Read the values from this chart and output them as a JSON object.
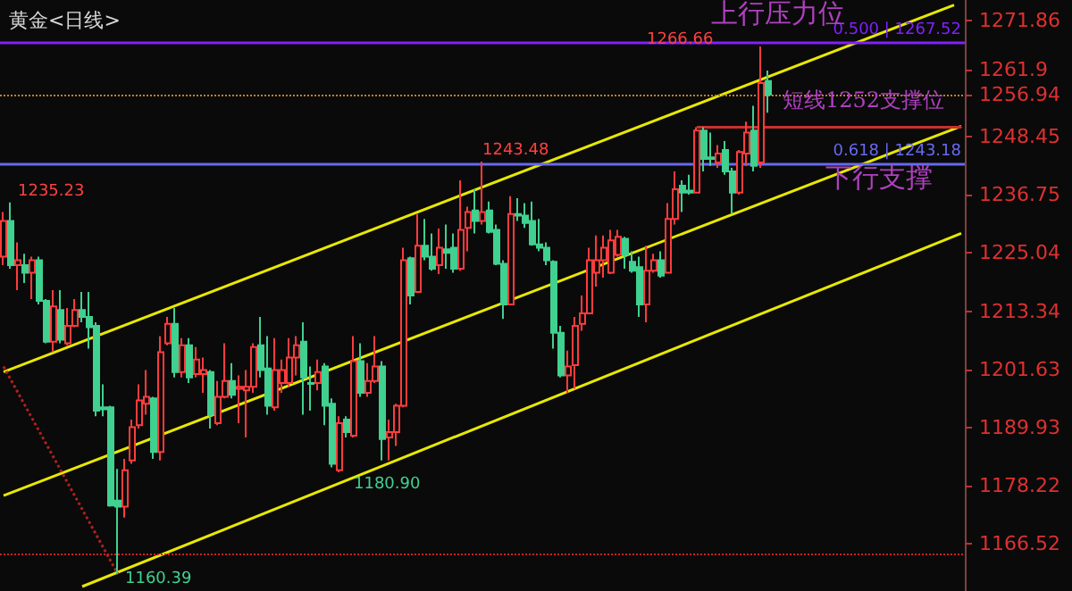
{
  "chart_data": {
    "type": "candlestick",
    "title": "黄金<日线>",
    "categories": [
      null,
      null,
      null,
      null,
      null,
      null,
      null,
      null,
      null,
      null,
      null,
      null,
      null,
      null,
      null,
      null,
      null,
      null,
      null,
      null,
      null,
      null,
      null,
      null,
      null,
      null,
      null,
      null,
      null,
      null,
      null,
      null,
      null,
      null,
      null,
      null,
      null,
      null,
      null,
      null,
      null,
      null,
      null,
      null,
      null,
      null,
      null,
      null,
      null,
      null,
      null,
      null,
      null,
      null,
      null,
      null,
      null,
      null,
      null,
      null,
      null,
      null,
      null,
      null,
      null,
      null,
      null,
      null,
      null,
      null,
      null,
      null,
      null,
      null,
      null,
      null,
      null,
      null,
      null,
      null,
      null,
      null,
      null,
      null,
      null,
      null,
      null,
      null,
      null,
      null,
      null,
      null,
      null,
      null,
      null,
      null,
      null,
      null,
      null,
      null,
      null,
      null,
      null,
      null,
      null,
      null,
      null,
      null,
      null,
      null,
      null,
      null,
      null,
      null,
      null,
      null,
      null,
      null,
      null,
      null,
      null,
      null,
      null,
      null,
      null,
      null,
      null,
      null,
      null,
      null,
      null,
      null,
      null,
      null,
      null
    ],
    "ohlc": [
      [
        1224.3,
        1233.3,
        1222.6,
        1231.5
      ],
      [
        1231.5,
        1235.23,
        1221.9,
        1222.6
      ],
      [
        1222.6,
        1227.2,
        1217.6,
        1223.6
      ],
      [
        1222.6,
        1224.9,
        1219.0,
        1221.1
      ],
      [
        1221.1,
        1224.3,
        1215.8,
        1223.6
      ],
      [
        1223.6,
        1224.3,
        1214.7,
        1215.4
      ],
      [
        1215.4,
        1215.8,
        1206.9,
        1207.2
      ],
      [
        1207.2,
        1217.6,
        1205.1,
        1214.3
      ],
      [
        1213.6,
        1217.6,
        1206.9,
        1207.6
      ],
      [
        1206.9,
        1214.0,
        1206.5,
        1210.4
      ],
      [
        1210.4,
        1215.8,
        1210.1,
        1213.6
      ],
      [
        1213.6,
        1217.2,
        1211.1,
        1212.2
      ],
      [
        1212.2,
        1217.2,
        1205.8,
        1210.1
      ],
      [
        1210.4,
        1211.1,
        1192.2,
        1193.3
      ],
      [
        1194.0,
        1198.6,
        1192.2,
        1193.6
      ],
      [
        1194.0,
        1194.3,
        1174.0,
        1174.2
      ],
      [
        1175.2,
        1181.6,
        1160.39,
        1174.0
      ],
      [
        1174.0,
        1183.6,
        1171.8,
        1181.3
      ],
      [
        1183.3,
        1191.5,
        1182.6,
        1190.0
      ],
      [
        1190.4,
        1198.6,
        1189.7,
        1195.4
      ],
      [
        1194.7,
        1201.5,
        1192.5,
        1196.1
      ],
      [
        1195.8,
        1196.1,
        1183.6,
        1185.0
      ],
      [
        1185.0,
        1208.3,
        1183.3,
        1205.1
      ],
      [
        1206.9,
        1212.2,
        1206.5,
        1210.8
      ],
      [
        1210.8,
        1214.0,
        1200.0,
        1201.1
      ],
      [
        1201.1,
        1207.9,
        1200.0,
        1206.5
      ],
      [
        1206.5,
        1207.9,
        1198.9,
        1200.0
      ],
      [
        1200.7,
        1206.1,
        1200.0,
        1203.6
      ],
      [
        1200.7,
        1204.0,
        1196.9,
        1201.5
      ],
      [
        1201.1,
        1201.5,
        1189.7,
        1192.5
      ],
      [
        1190.8,
        1199.3,
        1190.4,
        1196.1
      ],
      [
        1196.1,
        1206.9,
        1195.8,
        1199.3
      ],
      [
        1199.3,
        1202.9,
        1195.8,
        1196.5
      ],
      [
        1197.7,
        1200.4,
        1190.8,
        1198.1
      ],
      [
        1197.4,
        1201.5,
        1187.9,
        1198.1
      ],
      [
        1198.1,
        1206.9,
        1196.9,
        1206.1
      ],
      [
        1206.5,
        1212.2,
        1200.0,
        1201.5
      ],
      [
        1201.8,
        1208.3,
        1192.5,
        1194.3
      ],
      [
        1194.0,
        1207.9,
        1193.3,
        1201.5
      ],
      [
        1198.9,
        1203.6,
        1196.9,
        1201.5
      ],
      [
        1198.9,
        1207.9,
        1198.1,
        1204.0
      ],
      [
        1204.0,
        1208.3,
        1200.4,
        1206.5
      ],
      [
        1207.2,
        1211.1,
        1192.5,
        1200.0
      ],
      [
        1198.9,
        1202.2,
        1193.3,
        1198.7
      ],
      [
        1198.9,
        1203.6,
        1197.4,
        1201.1
      ],
      [
        1202.2,
        1202.9,
        1190.4,
        1194.3
      ],
      [
        1194.7,
        1195.8,
        1181.9,
        1182.6
      ],
      [
        1181.3,
        1192.2,
        1180.9,
        1190.8
      ],
      [
        1191.5,
        1192.2,
        1187.9,
        1189.0
      ],
      [
        1188.3,
        1208.3,
        1187.9,
        1203.3
      ],
      [
        1203.3,
        1206.9,
        1196.1,
        1196.9
      ],
      [
        1196.9,
        1202.9,
        1196.1,
        1199.3
      ],
      [
        1199.3,
        1208.3,
        1198.9,
        1202.2
      ],
      [
        1202.2,
        1203.3,
        1183.3,
        1187.6
      ],
      [
        1187.9,
        1191.5,
        1183.3,
        1189.0
      ],
      [
        1189.0,
        1194.7,
        1186.2,
        1194.3
      ],
      [
        1194.3,
        1226.1,
        1194.0,
        1223.6
      ],
      [
        1224.0,
        1224.3,
        1214.7,
        1216.5
      ],
      [
        1217.2,
        1232.9,
        1217.2,
        1226.5
      ],
      [
        1226.5,
        1231.9,
        1223.6,
        1224.3
      ],
      [
        1224.3,
        1229.0,
        1221.5,
        1221.9
      ],
      [
        1222.6,
        1230.0,
        1220.8,
        1226.1
      ],
      [
        1225.8,
        1230.8,
        1221.9,
        1225.1
      ],
      [
        1226.1,
        1229.0,
        1221.1,
        1221.9
      ],
      [
        1221.9,
        1239.7,
        1221.5,
        1229.7
      ],
      [
        1230.1,
        1234.4,
        1225.4,
        1233.3
      ],
      [
        1233.6,
        1237.9,
        1229.0,
        1231.5
      ],
      [
        1231.5,
        1243.48,
        1230.8,
        1233.3
      ],
      [
        1233.6,
        1235.4,
        1229.0,
        1229.3
      ],
      [
        1229.7,
        1230.8,
        1222.6,
        1222.9
      ],
      [
        1222.9,
        1223.6,
        1211.8,
        1214.7
      ],
      [
        1214.7,
        1236.5,
        1214.7,
        1232.9
      ],
      [
        1232.9,
        1236.1,
        1231.5,
        1232.6
      ],
      [
        1232.6,
        1235.1,
        1230.1,
        1231.1
      ],
      [
        1231.5,
        1235.4,
        1226.5,
        1226.8
      ],
      [
        1226.8,
        1231.9,
        1225.4,
        1226.1
      ],
      [
        1226.1,
        1227.2,
        1222.6,
        1223.6
      ],
      [
        1223.3,
        1223.6,
        1205.8,
        1209.0
      ],
      [
        1209.0,
        1210.4,
        1200.0,
        1200.4
      ],
      [
        1200.4,
        1205.4,
        1196.9,
        1202.2
      ],
      [
        1202.5,
        1212.2,
        1197.7,
        1210.4
      ],
      [
        1210.8,
        1216.5,
        1209.4,
        1212.9
      ],
      [
        1212.9,
        1226.1,
        1212.9,
        1223.6
      ],
      [
        1221.1,
        1228.6,
        1218.3,
        1223.6
      ],
      [
        1223.6,
        1228.6,
        1220.1,
        1226.1
      ],
      [
        1221.1,
        1229.7,
        1220.8,
        1227.6
      ],
      [
        1224.7,
        1229.7,
        1224.3,
        1228.3
      ],
      [
        1227.9,
        1228.3,
        1221.9,
        1224.7
      ],
      [
        1223.3,
        1225.4,
        1221.1,
        1221.5
      ],
      [
        1222.2,
        1224.3,
        1212.2,
        1214.7
      ],
      [
        1214.7,
        1226.5,
        1211.1,
        1221.5
      ],
      [
        1221.5,
        1224.9,
        1221.1,
        1223.6
      ],
      [
        1223.6,
        1225.4,
        1220.1,
        1220.5
      ],
      [
        1221.1,
        1235.1,
        1221.1,
        1231.9
      ],
      [
        1231.9,
        1241.5,
        1230.8,
        1237.9
      ],
      [
        1238.6,
        1239.7,
        1233.3,
        1237.2
      ],
      [
        1237.6,
        1240.8,
        1236.8,
        1237.2
      ],
      [
        1237.2,
        1250.4,
        1237.2,
        1249.7
      ],
      [
        1249.7,
        1250.4,
        1241.5,
        1244.0
      ],
      [
        1244.3,
        1249.3,
        1242.6,
        1244.0
      ],
      [
        1243.3,
        1246.8,
        1242.2,
        1245.1
      ],
      [
        1245.8,
        1247.6,
        1240.8,
        1241.5
      ],
      [
        1241.5,
        1242.2,
        1232.9,
        1237.2
      ],
      [
        1237.2,
        1245.8,
        1236.8,
        1245.4
      ],
      [
        1245.1,
        1251.5,
        1242.6,
        1249.3
      ],
      [
        1249.7,
        1254.7,
        1241.5,
        1242.6
      ],
      [
        1243.3,
        1266.66,
        1242.2,
        1259.3
      ],
      [
        1259.7,
        1261.8,
        1253.3,
        1256.94
      ],
      null,
      null,
      null,
      null,
      null,
      null,
      null,
      null,
      null,
      null,
      null,
      null,
      null,
      null,
      null,
      null,
      null,
      null,
      null,
      null,
      null,
      null,
      null,
      null,
      null,
      null,
      null
    ],
    "series": [
      {
        "type": "line",
        "color": "#e8e800",
        "values": [
          1201.1,
          null,
          null,
          null,
          null,
          null,
          null,
          null,
          null,
          null,
          null,
          null,
          null,
          null,
          null,
          null,
          null,
          null,
          null,
          null,
          null,
          null,
          null,
          null,
          null,
          null,
          null,
          null,
          null,
          null,
          null,
          null,
          null,
          null,
          null,
          null,
          null,
          null,
          null,
          null,
          null,
          null,
          null,
          null,
          null,
          null,
          null,
          null,
          null,
          null,
          null,
          null,
          null,
          null,
          null,
          null,
          null,
          null,
          null,
          null,
          null,
          null,
          null,
          null,
          null,
          null,
          null,
          null,
          null,
          null,
          null,
          null,
          null,
          null,
          null,
          null,
          null,
          null,
          null,
          null,
          null,
          null,
          null,
          null,
          null,
          null,
          null,
          null,
          null,
          null,
          null,
          null,
          null,
          null,
          null,
          null,
          null,
          null,
          null,
          null,
          null,
          null,
          null,
          null,
          null,
          null,
          null,
          null,
          null,
          null,
          null,
          null,
          null,
          null,
          null,
          null,
          null,
          null,
          null,
          null,
          null,
          null,
          null,
          null,
          null,
          null,
          null,
          null,
          null,
          null,
          null,
          null,
          null,
          1275.0,
          null
        ]
      },
      {
        "type": "line",
        "color": "#e8e800",
        "values": [
          1176.2,
          null,
          null,
          null,
          null,
          null,
          null,
          null,
          null,
          null,
          null,
          null,
          null,
          null,
          null,
          null,
          null,
          null,
          null,
          null,
          null,
          null,
          null,
          null,
          null,
          null,
          null,
          null,
          null,
          null,
          null,
          null,
          null,
          null,
          null,
          null,
          null,
          null,
          null,
          null,
          null,
          null,
          null,
          null,
          null,
          null,
          null,
          null,
          null,
          null,
          null,
          null,
          null,
          null,
          null,
          null,
          null,
          null,
          null,
          null,
          null,
          null,
          null,
          null,
          null,
          null,
          null,
          null,
          null,
          null,
          null,
          null,
          null,
          null,
          null,
          null,
          null,
          null,
          null,
          null,
          null,
          null,
          null,
          null,
          null,
          null,
          null,
          null,
          null,
          null,
          null,
          null,
          null,
          null,
          null,
          null,
          null,
          null,
          null,
          null,
          null,
          null,
          null,
          null,
          null,
          null,
          null,
          null,
          null,
          null,
          null,
          null,
          null,
          null,
          null,
          null,
          null,
          null,
          null,
          null,
          null,
          null,
          null,
          null,
          null,
          null,
          null,
          null,
          null,
          null,
          null,
          null,
          null,
          null,
          1250.6
        ]
      },
      {
        "type": "line",
        "color": "#e8e800",
        "values": [
          null,
          null,
          null,
          null,
          null,
          null,
          null,
          null,
          null,
          null,
          null,
          1157.9,
          null,
          null,
          null,
          null,
          null,
          null,
          null,
          null,
          null,
          null,
          null,
          null,
          null,
          null,
          null,
          null,
          null,
          null,
          null,
          null,
          null,
          null,
          null,
          null,
          null,
          null,
          null,
          null,
          null,
          null,
          null,
          null,
          null,
          null,
          null,
          null,
          null,
          null,
          null,
          null,
          null,
          null,
          null,
          null,
          null,
          null,
          null,
          null,
          null,
          null,
          null,
          null,
          null,
          null,
          null,
          null,
          null,
          null,
          null,
          null,
          null,
          null,
          null,
          null,
          null,
          null,
          null,
          null,
          null,
          null,
          null,
          null,
          null,
          null,
          null,
          null,
          null,
          null,
          null,
          null,
          null,
          null,
          null,
          null,
          null,
          null,
          null,
          null,
          null,
          null,
          null,
          null,
          null,
          null,
          null,
          null,
          null,
          null,
          null,
          null,
          null,
          null,
          null,
          null,
          null,
          null,
          null,
          null,
          null,
          null,
          null,
          null,
          null,
          null,
          null,
          null,
          null,
          null,
          null,
          null,
          null,
          null,
          1229.0
        ]
      },
      {
        "type": "line",
        "color": "#b02020",
        "line_style": "dotted",
        "values": [
          1202.2,
          null,
          null,
          null,
          null,
          null,
          null,
          null,
          null,
          null,
          null,
          null,
          null,
          null,
          null,
          null,
          1160.39,
          null,
          null,
          null,
          null,
          null,
          null,
          null,
          null,
          null,
          null,
          null,
          null,
          null,
          null,
          null,
          null,
          null,
          null,
          null,
          null,
          null,
          null,
          null,
          null,
          null,
          null,
          null,
          null,
          null,
          null,
          null,
          null,
          null,
          null,
          null,
          null,
          null,
          null,
          null,
          null,
          null,
          null,
          null,
          null,
          null,
          null,
          null,
          null,
          null,
          null,
          null,
          null,
          null,
          null,
          null,
          null,
          null,
          null,
          null,
          null,
          null,
          null,
          null,
          null,
          null,
          null,
          null,
          null,
          null,
          null,
          null,
          null,
          null,
          null,
          null,
          null,
          null,
          null,
          null,
          null,
          null,
          null,
          null,
          null,
          null,
          null,
          null,
          null,
          null,
          null,
          null,
          null,
          null,
          null,
          null,
          null,
          null,
          null,
          null,
          null,
          null,
          null,
          null,
          null,
          null,
          null,
          null,
          null,
          null,
          null,
          null,
          null,
          null,
          null,
          null,
          null,
          null,
          null
        ]
      },
      {
        "type": "line",
        "color": "#c83030",
        "values": [
          null,
          null,
          null,
          null,
          null,
          null,
          null,
          null,
          null,
          null,
          null,
          null,
          null,
          null,
          null,
          null,
          null,
          null,
          null,
          null,
          null,
          null,
          null,
          null,
          null,
          null,
          null,
          null,
          null,
          null,
          null,
          null,
          null,
          null,
          null,
          null,
          null,
          null,
          null,
          null,
          null,
          null,
          null,
          null,
          null,
          null,
          null,
          null,
          null,
          null,
          null,
          null,
          null,
          null,
          null,
          null,
          null,
          null,
          null,
          null,
          null,
          null,
          null,
          null,
          null,
          null,
          null,
          null,
          null,
          null,
          null,
          null,
          null,
          null,
          null,
          null,
          null,
          null,
          null,
          null,
          null,
          null,
          null,
          null,
          null,
          null,
          null,
          null,
          null,
          null,
          null,
          null,
          null,
          null,
          null,
          null,
          null,
          1250.4,
          null,
          null,
          null,
          null,
          null,
          null,
          null,
          null,
          null,
          null,
          null,
          null,
          null,
          null,
          null,
          null,
          null,
          null,
          null,
          null,
          null,
          null,
          null,
          null,
          null,
          null,
          null,
          null,
          null,
          null,
          null,
          null,
          null,
          null,
          null,
          null,
          1250.4
        ]
      }
    ],
    "ylim": [
      1157,
      1276
    ],
    "yticks": [
      1166.52,
      1178.22,
      1189.93,
      1201.63,
      1213.34,
      1225.04,
      1236.75,
      1248.45,
      1256.94,
      1261.9,
      1271.86
    ],
    "ref_lines": [
      {
        "axis": "y",
        "value": 1267.52,
        "label": "0.500 | 1267.52",
        "color": "#8020ff"
      },
      {
        "axis": "y",
        "value": 1243.18,
        "label": "0.618 | 1243.18",
        "color": "#6868f0"
      },
      {
        "axis": "y",
        "value": 1256.94,
        "label": null,
        "color": "#c08030",
        "line_style": "dotted"
      },
      {
        "axis": "y",
        "value": 1164.4,
        "label": null,
        "color": "#d02020",
        "line_style": "dotted"
      }
    ],
    "annotations": [
      "上行压力位",
      "短线1252支撑位",
      "下行支撑",
      "1235.23",
      "1243.48",
      "1266.66",
      "1180.90",
      "1160.39"
    ],
    "tick_labels": "y"
  }
}
